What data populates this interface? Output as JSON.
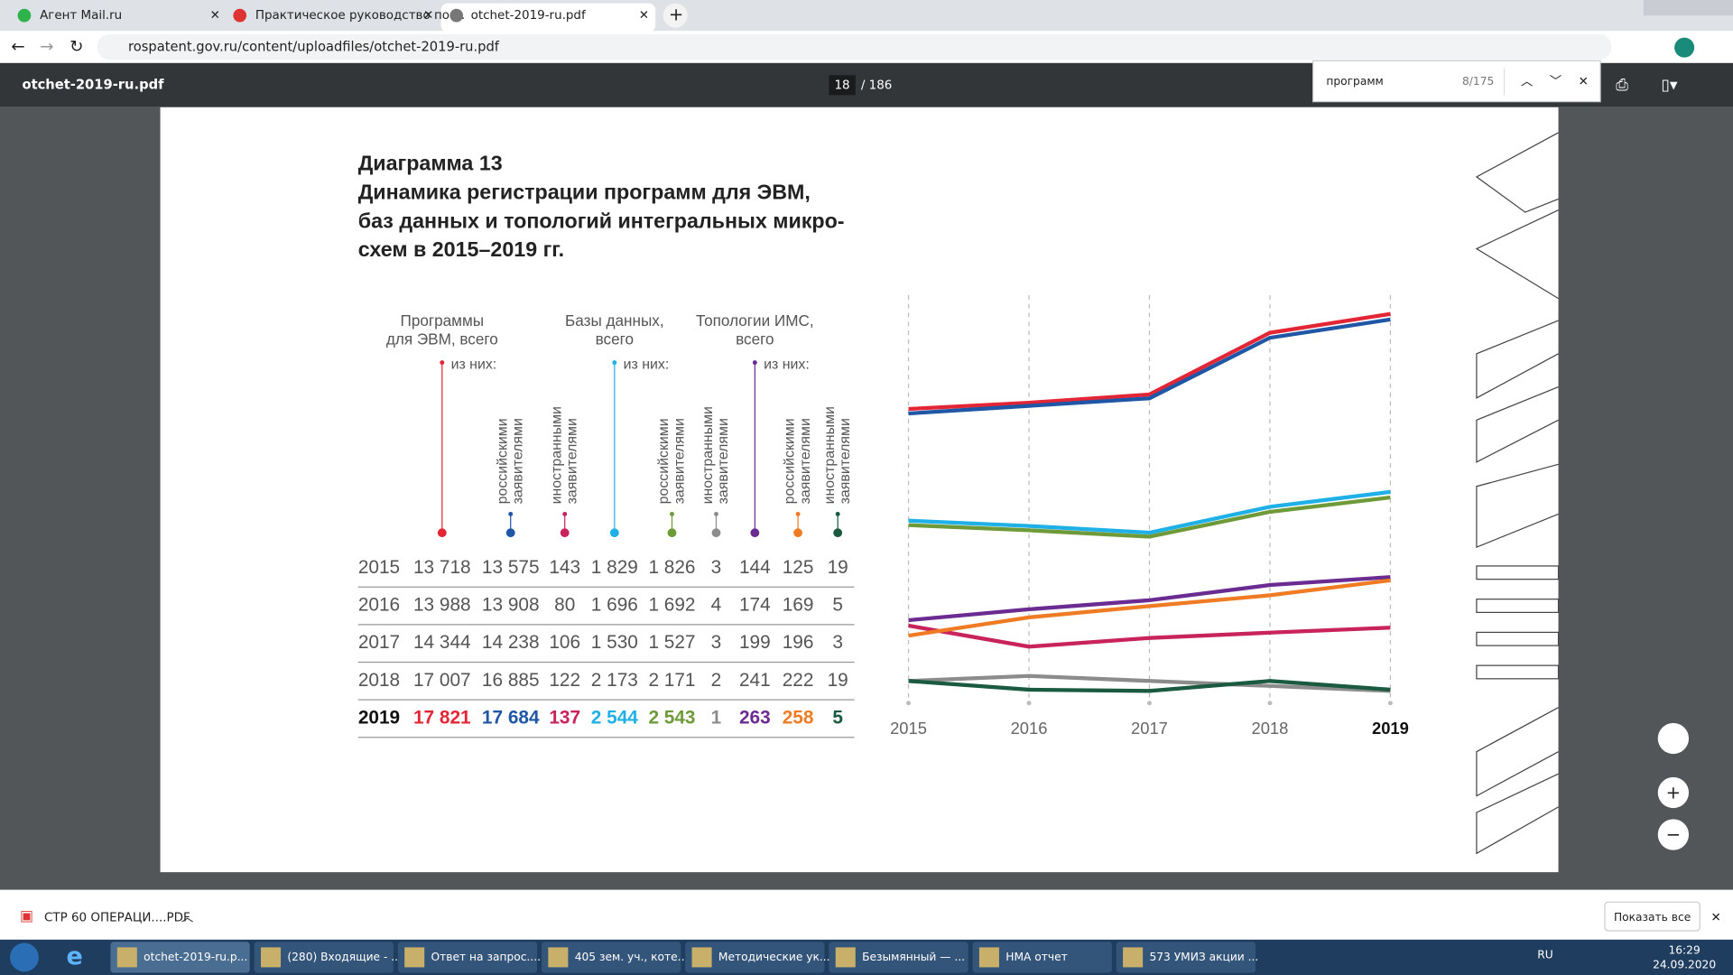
{
  "browser": {
    "tabs": [
      "Агент Mail.ru",
      "Практическое руководство по ...",
      "otchet-2019-ru.pdf"
    ],
    "address": "rospatent.gov.ru/content/uploadfiles/otchet-2019-ru.pdf"
  },
  "pdf_toolbar": {
    "title": "otchet-2019-ru.pdf",
    "page": "18",
    "pages": "/ 186"
  },
  "find": {
    "query": "программ",
    "count": "8/175"
  },
  "document": {
    "heading": "Диаграмма 13",
    "title_lines": [
      "Динамика регистрации программ для ЭВМ,",
      "баз данных и топологий интегральных микро-",
      "схем в 2015–2019 гг."
    ],
    "column_headers": {
      "groups": [
        {
          "lines": [
            "Программы",
            "для ЭВМ, всего"
          ],
          "note": "из них:"
        },
        {
          "lines": [
            "Базы данных,",
            "всего"
          ],
          "note": "из них:"
        },
        {
          "lines": [
            "Топологии ИМС,",
            "всего"
          ],
          "note": "из них:"
        }
      ],
      "sub": [
        [
          "российскими",
          "заявителями"
        ],
        [
          "иностранными",
          "заявителями"
        ],
        [
          "российскими",
          "заявителями"
        ],
        [
          "иностранными",
          "заявителями"
        ],
        [
          "российскими",
          "заявителями"
        ],
        [
          "иностранными",
          "заявителями"
        ]
      ]
    }
  },
  "chart_data": {
    "type": "line",
    "x": [
      "2015",
      "2016",
      "2017",
      "2018",
      "2019"
    ],
    "series": [
      {
        "color": "#e32636",
        "values": [
          13718,
          13988,
          14344,
          17007,
          17821
        ],
        "value_labels": [
          "13 718",
          "13 988",
          "14 344",
          "17 007",
          "17 821"
        ]
      },
      {
        "color": "#1f56a5",
        "values": [
          13575,
          13908,
          14238,
          16885,
          17684
        ],
        "value_labels": [
          "13 575",
          "13 908",
          "14 238",
          "16 885",
          "17 684"
        ]
      },
      {
        "color": "#c8235a",
        "values": [
          143,
          80,
          106,
          122,
          137
        ]
      },
      {
        "color": "#1eb0e6",
        "values": [
          1829,
          1696,
          1530,
          2173,
          2544
        ],
        "value_labels": [
          "1 829",
          "1 696",
          "1 530",
          "2 173",
          "2 544"
        ]
      },
      {
        "color": "#6f9a3a",
        "values": [
          1826,
          1692,
          1527,
          2171,
          2543
        ],
        "value_labels": [
          "1 826",
          "1 692",
          "1 527",
          "2 171",
          "2 543"
        ]
      },
      {
        "color": "#8c8c8c",
        "values": [
          3,
          4,
          3,
          2,
          1
        ]
      },
      {
        "color": "#6a2c91",
        "values": [
          144,
          174,
          199,
          241,
          263
        ]
      },
      {
        "color": "#f07b25",
        "values": [
          125,
          169,
          196,
          222,
          258
        ]
      },
      {
        "color": "#1a5a40",
        "values": [
          19,
          5,
          3,
          19,
          5
        ]
      }
    ]
  },
  "downloads": {
    "file": "СТР 60 ОПЕРАЦИ....PDF",
    "show_all": "Показать все"
  },
  "taskbar": {
    "items": [
      "otchet-2019-ru.p...",
      "(280) Входящие - ...",
      "Ответ на запрос....",
      "405 зем. уч., коте...",
      "Методические ук...",
      "Безымянный — ...",
      "НМА отчет",
      "573 УМИЗ акции ..."
    ],
    "lang": "RU",
    "time": "16:29",
    "date": "24.09.2020"
  }
}
